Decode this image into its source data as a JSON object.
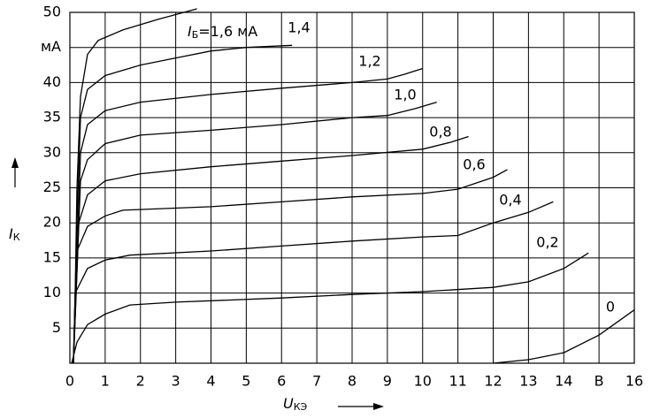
{
  "chart_data": {
    "type": "line",
    "xlabel": {
      "symbol": "U",
      "subscript": "КЭ"
    },
    "ylabel": {
      "symbol": "I",
      "subscript": "К"
    },
    "first_label": {
      "symbol": "I",
      "subscript": "Б"
    },
    "xlim": [
      0,
      16
    ],
    "ylim": [
      0,
      50
    ],
    "xticks": [
      0,
      1,
      2,
      3,
      4,
      5,
      6,
      7,
      8,
      9,
      10,
      11,
      12,
      13,
      14,
      {
        "value": 15,
        "label": "В"
      },
      16
    ],
    "yticks": [
      5,
      10,
      15,
      20,
      25,
      30,
      35,
      40,
      {
        "value": 45,
        "label": "мА"
      },
      50
    ],
    "grid": true,
    "color": "#000000",
    "series": [
      {
        "name": "=1,6 мА",
        "x": [
          0.1,
          0.15,
          0.2,
          0.3,
          0.5,
          0.8,
          1.5,
          2.5,
          3.6
        ],
        "values": [
          0,
          10,
          25,
          38,
          44,
          46,
          47.5,
          49,
          50.5
        ]
      },
      {
        "name": "1,4",
        "x": [
          0.1,
          0.2,
          0.3,
          0.5,
          1,
          2,
          3,
          4,
          5,
          6.3
        ],
        "values": [
          0,
          20,
          35,
          39,
          41,
          42.5,
          43.5,
          44.5,
          45,
          45.3
        ]
      },
      {
        "name": "1,2",
        "x": [
          0.1,
          0.3,
          0.5,
          1,
          2,
          4,
          6,
          8,
          9,
          9.5,
          10
        ],
        "values": [
          0,
          30,
          34,
          36,
          37.2,
          38.3,
          39.2,
          40,
          40.5,
          41.2,
          42
        ]
      },
      {
        "name": "1,0",
        "x": [
          0.1,
          0.3,
          0.5,
          1,
          2,
          4,
          6,
          8,
          9,
          9.8,
          10.4
        ],
        "values": [
          0,
          26,
          29,
          31.3,
          32.5,
          33.2,
          34,
          35,
          35.3,
          36.3,
          37.2
        ]
      },
      {
        "name": "0,8",
        "x": [
          0.1,
          0.25,
          0.5,
          1,
          2,
          4,
          6,
          8,
          10,
          10.8,
          11.3
        ],
        "values": [
          0,
          20,
          24,
          26,
          27,
          28,
          28.8,
          29.6,
          30.5,
          31.5,
          32.3
        ]
      },
      {
        "name": "0,6",
        "x": [
          0.1,
          0.2,
          0.5,
          1,
          1.5,
          4,
          6,
          8,
          10,
          11,
          12,
          12.4
        ],
        "values": [
          0,
          16,
          19.5,
          21,
          21.8,
          22.3,
          23,
          23.7,
          24.2,
          24.8,
          26.5,
          27.6
        ]
      },
      {
        "name": "0,4",
        "x": [
          0.1,
          0.15,
          0.5,
          1,
          1.7,
          4,
          6,
          8,
          10,
          11,
          12,
          13,
          13.7
        ],
        "values": [
          0,
          10,
          13.5,
          14.7,
          15.4,
          16,
          16.7,
          17.4,
          18,
          18.2,
          20,
          21.5,
          23
        ]
      },
      {
        "name": "0,2",
        "x": [
          0.05,
          0.2,
          0.5,
          1,
          1.7,
          3,
          6,
          8,
          10,
          12,
          13,
          14,
          14.7
        ],
        "values": [
          0,
          3,
          5.5,
          7,
          8.3,
          8.7,
          9.3,
          9.8,
          10.2,
          10.8,
          11.6,
          13.5,
          15.7
        ]
      },
      {
        "name": "0",
        "x": [
          12,
          13,
          14,
          15,
          16
        ],
        "values": [
          0,
          0.5,
          1.5,
          4,
          7.6
        ]
      }
    ]
  }
}
